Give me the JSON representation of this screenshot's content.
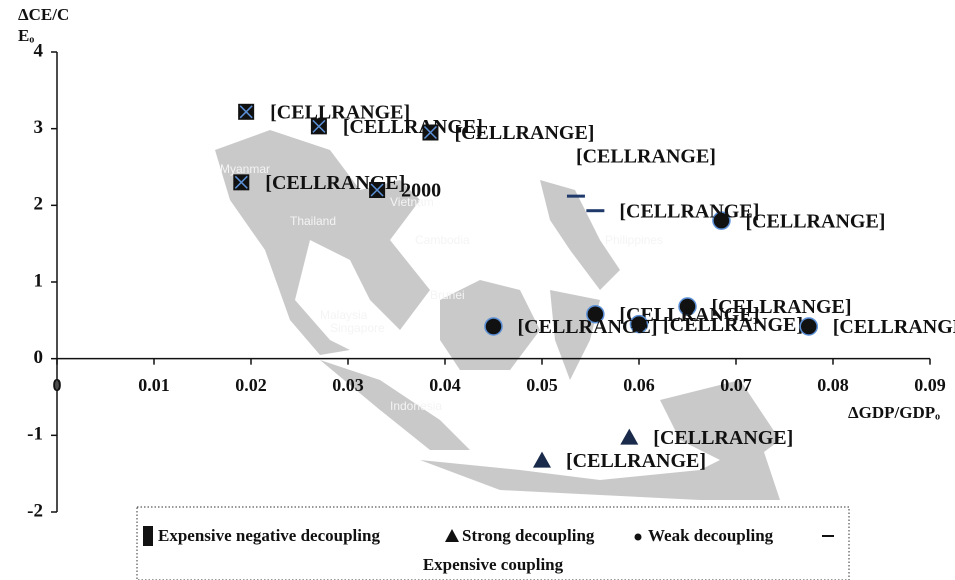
{
  "chart_data": {
    "type": "scatter",
    "ylabel": [
      "ΔCE/C",
      "Eₒ"
    ],
    "xlabel": "ΔGDP/GDPₒ",
    "xlim": [
      0,
      0.09
    ],
    "ylim": [
      -2,
      4
    ],
    "xticks": [
      0,
      0.01,
      0.02,
      0.03,
      0.04,
      0.05,
      0.06,
      0.07,
      0.08,
      0.09
    ],
    "yticks": [
      -2,
      -1,
      0,
      1,
      2,
      3,
      4
    ],
    "map_labels": [
      "Myanmar",
      "Thailand",
      "Vietnam",
      "Cambodia",
      "Philippines",
      "Brunei",
      "Malaysia",
      "Singapore",
      "Indonesia"
    ],
    "legend": "bottom",
    "series": [
      {
        "name": "Expensive negative decoupling",
        "marker": "square-x",
        "color": "#111111",
        "x": [
          0.0195,
          0.027,
          0.0385,
          0.019,
          0.033
        ],
        "values": [
          3.22,
          3.03,
          2.95,
          2.3,
          2.2
        ],
        "value_labels": [
          "[CELLRANGE]",
          "[CELLRANGE]",
          "[CELLRANGE]",
          "[CELLRANGE]",
          "2000"
        ]
      },
      {
        "name": "Strong decoupling",
        "marker": "triangle",
        "color": "#1a2a4a",
        "x": [
          0.059,
          0.05
        ],
        "values": [
          -1.03,
          -1.33
        ],
        "value_labels": [
          "[CELLRANGE]",
          "[CELLRANGE]"
        ]
      },
      {
        "name": "Weak decoupling",
        "marker": "circle",
        "color": "#111111",
        "x": [
          0.0685,
          0.065,
          0.0555,
          0.06,
          0.045,
          0.0775
        ],
        "values": [
          1.8,
          0.68,
          0.58,
          0.45,
          0.42,
          0.42
        ],
        "value_labels": [
          "[CELLRANGE]",
          "[CELLRANGE]",
          "[CELLRANGE]",
          "[CELLRANGE]",
          "[CELLRANGE]",
          "[CELLRANGE]"
        ]
      },
      {
        "name": "Expensive coupling",
        "marker": "dash",
        "color": "#1f3a6a",
        "x": [
          0.0535,
          0.0555
        ],
        "values": [
          2.12,
          1.93
        ],
        "value_labels": [
          "[CELLRANGE]",
          "[CELLRANGE]"
        ]
      }
    ]
  }
}
